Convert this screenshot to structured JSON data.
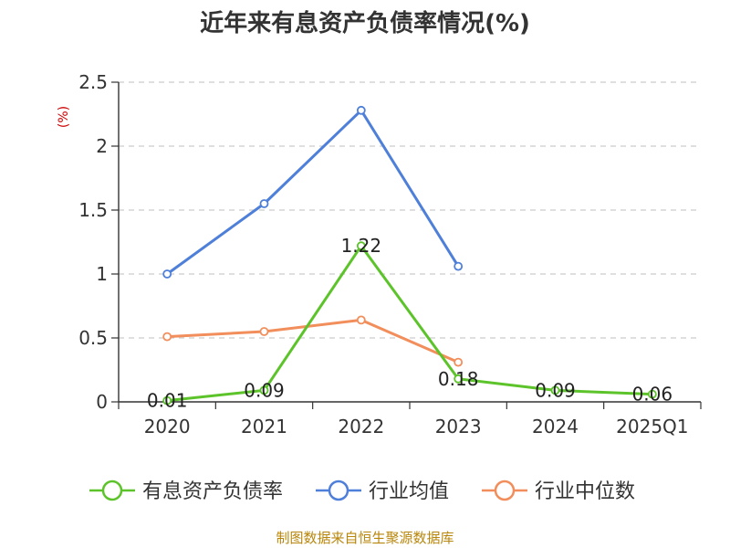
{
  "chart_data": {
    "type": "line",
    "title": "近年来有息资产负债率情况(%)",
    "ylabel": "(%)",
    "categories": [
      "2020",
      "2021",
      "2022",
      "2023",
      "2024",
      "2025Q1"
    ],
    "y_ticks": [
      "0",
      "0.5",
      "1",
      "1.5",
      "2",
      "2.5"
    ],
    "ylim": [
      0,
      2.5
    ],
    "grid": true,
    "legend_placement": "bottom-center",
    "series": [
      {
        "name": "有息资产负债率",
        "color": "#5cc42a",
        "values": [
          0.01,
          0.09,
          1.22,
          0.18,
          0.09,
          0.06
        ],
        "labels": [
          "0.01",
          "0.09",
          "1.22",
          "0.18",
          "0.09",
          "0.06"
        ]
      },
      {
        "name": "行业均值",
        "color": "#4e7fd9",
        "values": [
          1.0,
          1.55,
          2.28,
          1.06,
          null,
          null
        ]
      },
      {
        "name": "行业中位数",
        "color": "#f28e5b",
        "values": [
          0.51,
          0.55,
          0.64,
          0.31,
          null,
          null
        ]
      }
    ],
    "source": "制图数据来自恒生聚源数据库"
  }
}
